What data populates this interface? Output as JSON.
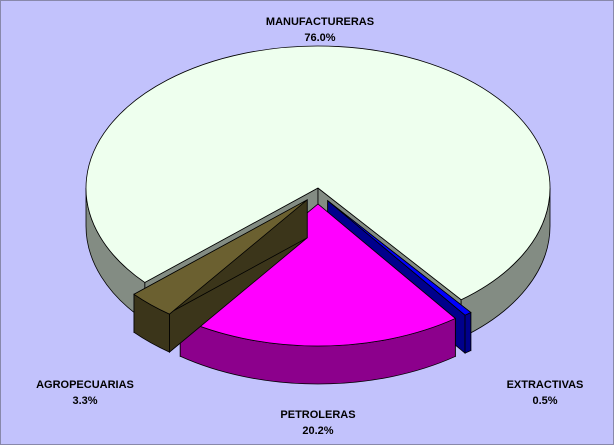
{
  "chart_data": {
    "type": "pie3d",
    "categories": [
      "MANUFACTURERAS",
      "EXTRACTIVAS",
      "PETROLERAS",
      "AGROPECUARIAS"
    ],
    "values": [
      76.0,
      0.5,
      20.2,
      3.3
    ],
    "value_labels": [
      "76.0%",
      "0.5%",
      "20.2%",
      "3.3%"
    ],
    "colors": [
      "#eeffee",
      "#0000ff",
      "#ff00ff",
      "#6b6030"
    ]
  }
}
